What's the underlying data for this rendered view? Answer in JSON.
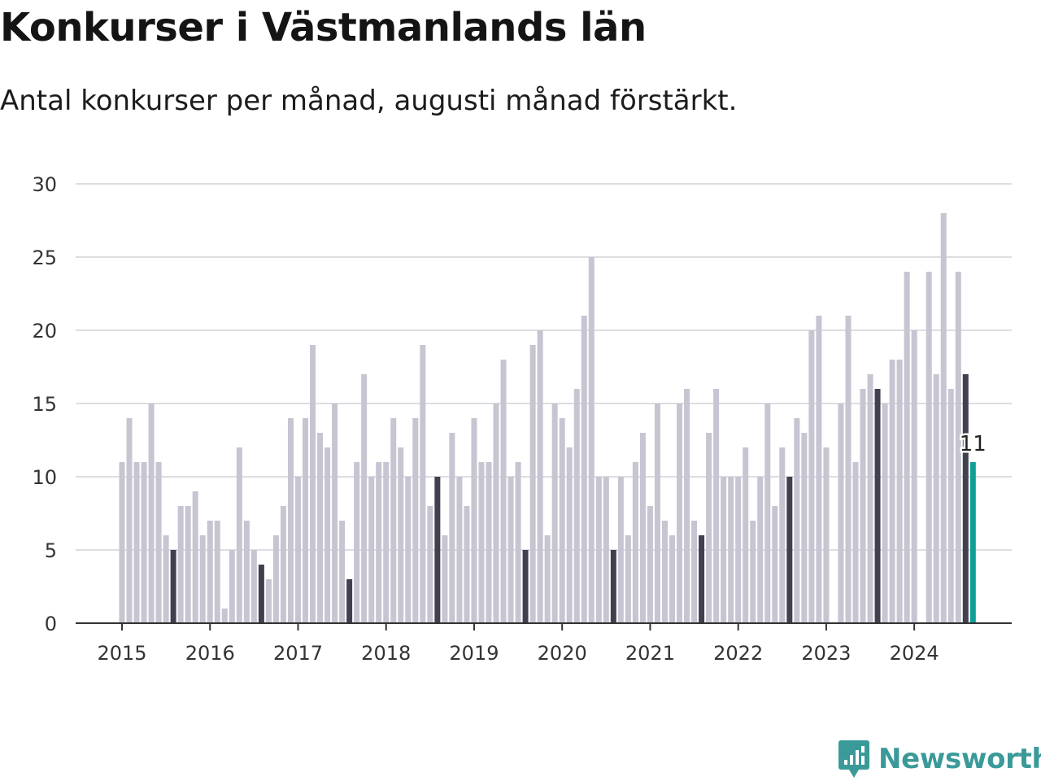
{
  "title": "Konkurser i Västmanlands län",
  "subtitle": "Antal konkurser per månad, augusti månad förstärkt.",
  "brand": "Newsworthy",
  "colors": {
    "default_bar": "#c6c5d1",
    "august_bar": "#40404f",
    "latest_bar": "#0e9f96",
    "grid": "#dddde2",
    "axis": "#333333",
    "brand": "#3a9a99"
  },
  "chart_data": {
    "type": "bar",
    "title": "Konkurser i Västmanlands län",
    "subtitle": "Antal konkurser per månad, augusti månad förstärkt.",
    "xlabel": "",
    "ylabel": "",
    "ylim": [
      0,
      30
    ],
    "yticks": [
      0,
      5,
      10,
      15,
      20,
      25,
      30
    ],
    "xticks": [
      "2015",
      "2016",
      "2017",
      "2018",
      "2019",
      "2020",
      "2021",
      "2022",
      "2023",
      "2024"
    ],
    "grid": true,
    "highlight": "augusti",
    "start_month": "2015-01",
    "latest_label": "11",
    "values": [
      11,
      14,
      11,
      11,
      15,
      11,
      6,
      5,
      8,
      8,
      9,
      6,
      7,
      7,
      1,
      5,
      12,
      7,
      5,
      4,
      3,
      6,
      8,
      14,
      10,
      14,
      19,
      13,
      12,
      15,
      7,
      3,
      11,
      17,
      10,
      11,
      11,
      14,
      12,
      10,
      14,
      19,
      8,
      10,
      6,
      13,
      10,
      8,
      14,
      11,
      11,
      15,
      18,
      10,
      11,
      5,
      19,
      20,
      6,
      15,
      14,
      12,
      16,
      21,
      25,
      10,
      10,
      5,
      10,
      6,
      11,
      13,
      8,
      15,
      7,
      6,
      15,
      16,
      7,
      6,
      13,
      16,
      10,
      10,
      10,
      12,
      7,
      10,
      15,
      8,
      12,
      10,
      14,
      13,
      20,
      21,
      12,
      0,
      15,
      21,
      11,
      16,
      17,
      16,
      15,
      18,
      18,
      24,
      20,
      0,
      24,
      17,
      28,
      16,
      24,
      17,
      11
    ]
  }
}
